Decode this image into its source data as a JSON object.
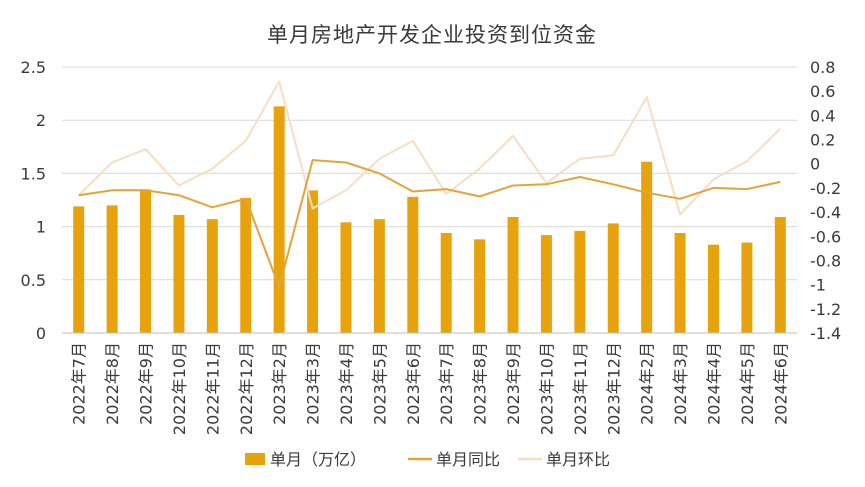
{
  "chart_data": {
    "type": "bar",
    "title": "单月房地产开发企业投资到位资金",
    "categories": [
      "2022年7月",
      "2022年8月",
      "2022年9月",
      "2022年10月",
      "2022年11月",
      "2022年12月",
      "2023年2月",
      "2023年3月",
      "2023年4月",
      "2023年5月",
      "2023年6月",
      "2023年7月",
      "2023年8月",
      "2023年9月",
      "2023年10月",
      "2023年11月",
      "2023年12月",
      "2024年2月",
      "2024年3月",
      "2024年4月",
      "2024年5月",
      "2024年6月"
    ],
    "series": [
      {
        "name": "单月（万亿）",
        "type": "bar",
        "axis": "left",
        "color": "#E8A30C",
        "values": [
          1.19,
          1.2,
          1.35,
          1.11,
          1.07,
          1.27,
          2.13,
          1.34,
          1.04,
          1.07,
          1.28,
          0.94,
          0.88,
          1.09,
          0.92,
          0.96,
          1.03,
          1.61,
          0.94,
          0.83,
          0.85,
          1.09
        ]
      },
      {
        "name": "单月同比",
        "type": "line",
        "axis": "right",
        "color": "#E2A43B",
        "values": [
          -0.26,
          -0.22,
          -0.22,
          -0.26,
          -0.36,
          -0.29,
          -1.02,
          0.03,
          0.01,
          -0.08,
          -0.23,
          -0.21,
          -0.27,
          -0.18,
          -0.17,
          -0.11,
          -0.17,
          -0.24,
          -0.29,
          -0.2,
          -0.21,
          -0.15
        ]
      },
      {
        "name": "单月环比",
        "type": "line",
        "axis": "right",
        "color": "#F8DDC2",
        "values": [
          -0.26,
          0.01,
          0.12,
          -0.18,
          -0.04,
          0.19,
          0.68,
          -0.37,
          -0.22,
          0.04,
          0.19,
          -0.25,
          -0.04,
          0.23,
          -0.16,
          0.04,
          0.07,
          0.55,
          -0.42,
          -0.13,
          0.02,
          0.29
        ]
      }
    ],
    "yaxis_left": {
      "min": 0,
      "max": 2.5,
      "ticks": [
        "0",
        "0.5",
        "1",
        "1.5",
        "2",
        "2.5"
      ],
      "tick_values": [
        0,
        0.5,
        1,
        1.5,
        2,
        2.5
      ]
    },
    "yaxis_right": {
      "min": -1.4,
      "max": 0.8,
      "ticks": [
        "-1.4",
        "-1.2",
        "-1",
        "-0.8",
        "-0.6",
        "-0.4",
        "-0.2",
        "0",
        "0.2",
        "0.4",
        "0.6",
        "0.8"
      ],
      "tick_values": [
        -1.4,
        -1.2,
        -1,
        -0.8,
        -0.6,
        -0.4,
        -0.2,
        0,
        0.2,
        0.4,
        0.6,
        0.8
      ]
    },
    "grid": true,
    "legend_position": "bottom"
  }
}
